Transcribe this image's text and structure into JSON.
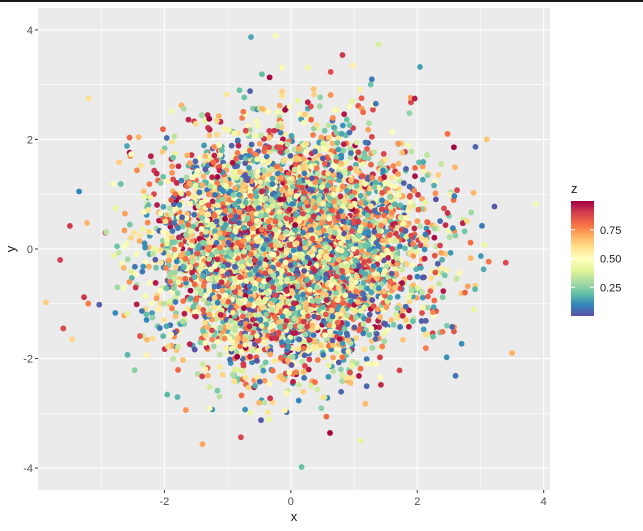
{
  "chart_data": {
    "type": "scatter",
    "title": "",
    "xlabel": "x",
    "ylabel": "y",
    "xlim": [
      -4.0,
      4.1
    ],
    "ylim": [
      -4.4,
      4.4
    ],
    "x_ticks": [
      -2,
      0,
      2,
      4
    ],
    "y_ticks": [
      -4,
      -2,
      0,
      2,
      4
    ],
    "x_tick_labels": [
      "-2",
      "0",
      "2",
      "4"
    ],
    "y_tick_labels": [
      "-4",
      "-2",
      "0",
      "2",
      "4"
    ],
    "grid": true,
    "legend": {
      "title": "z",
      "position": "right",
      "type": "colorbar",
      "breaks": [
        0.25,
        0.5,
        0.75
      ],
      "break_labels": [
        "0.25",
        "0.50",
        "0.75"
      ],
      "range": [
        0,
        1
      ],
      "palette": [
        "#5E4FA2",
        "#3288BD",
        "#66C2A5",
        "#ABDDA4",
        "#E6F598",
        "#FFFFBF",
        "#FEE08B",
        "#FDAE61",
        "#F46D43",
        "#D53E4F",
        "#9E0142"
      ]
    },
    "points_summary": {
      "count": 6000,
      "x_distribution": "normal(0, 1)",
      "y_distribution": "normal(0, 1)",
      "z_distribution": "uniform(0, 1)"
    },
    "notable_points": [
      {
        "x": -0.63,
        "y": 3.87,
        "z": 0.15
      },
      {
        "x": 0.17,
        "y": -3.98,
        "z": 0.2
      },
      {
        "x": 3.88,
        "y": 0.82,
        "z": 0.45
      },
      {
        "x": 3.5,
        "y": -1.9,
        "z": 0.7
      },
      {
        "x": -3.65,
        "y": -0.2,
        "z": 0.9
      },
      {
        "x": -3.6,
        "y": -1.45,
        "z": 0.88
      },
      {
        "x": 0.98,
        "y": 3.35,
        "z": 0.55
      },
      {
        "x": -3.2,
        "y": 2.75,
        "z": 0.6
      },
      {
        "x": 3.1,
        "y": 2.0,
        "z": 0.65
      },
      {
        "x": 1.1,
        "y": -3.5,
        "z": 0.4
      },
      {
        "x": -3.35,
        "y": 1.05,
        "z": 0.1
      },
      {
        "x": 3.4,
        "y": -0.25,
        "z": 0.88
      }
    ]
  }
}
